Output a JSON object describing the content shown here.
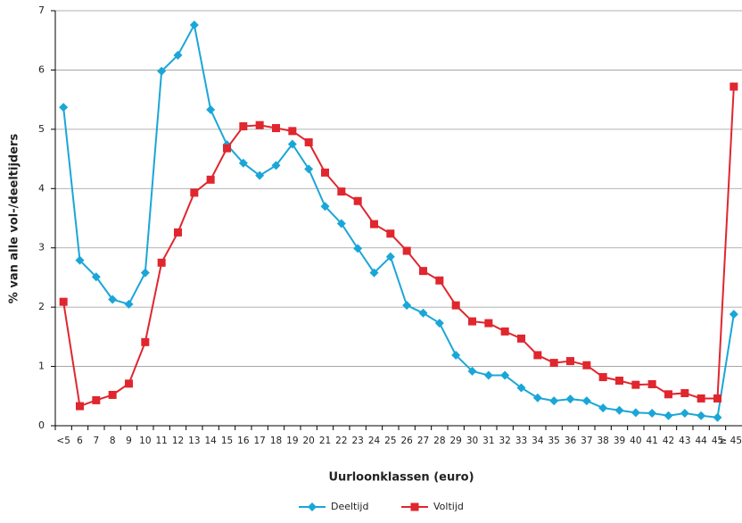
{
  "chart_data": {
    "type": "line",
    "x_label": "Uurloonklassen (euro)",
    "y_label": "% van alle vol-/deeltijders",
    "categories": [
      "<5",
      "6",
      "7",
      "8",
      "9",
      "10",
      "11",
      "12",
      "13",
      "14",
      "15",
      "16",
      "17",
      "18",
      "19",
      "20",
      "21",
      "22",
      "23",
      "24",
      "25",
      "26",
      "27",
      "28",
      "29",
      "30",
      "31",
      "32",
      "33",
      "34",
      "35",
      "36",
      "37",
      "38",
      "39",
      "40",
      "41",
      "42",
      "43",
      "44",
      "45",
      "≥ 45"
    ],
    "series": [
      {
        "name": "Deeltijd",
        "color": "#1aa6d8",
        "marker": "diamond",
        "values": [
          5.37,
          2.79,
          2.51,
          2.13,
          2.05,
          2.58,
          5.98,
          6.25,
          6.76,
          5.33,
          4.74,
          4.43,
          4.22,
          4.39,
          4.75,
          4.33,
          3.7,
          3.41,
          2.99,
          2.58,
          2.85,
          2.03,
          1.9,
          1.73,
          1.19,
          0.92,
          0.85,
          0.85,
          0.64,
          0.47,
          0.42,
          0.45,
          0.42,
          0.3,
          0.26,
          0.22,
          0.21,
          0.17,
          0.21,
          0.17,
          0.14,
          1.88
        ]
      },
      {
        "name": "Voltijd",
        "color": "#e0262e",
        "marker": "square",
        "values": [
          2.09,
          0.33,
          0.43,
          0.52,
          0.71,
          1.41,
          2.75,
          3.26,
          3.93,
          4.15,
          4.68,
          5.05,
          5.07,
          5.02,
          4.97,
          4.78,
          4.27,
          3.95,
          3.79,
          3.4,
          3.24,
          2.95,
          2.61,
          2.45,
          2.03,
          1.76,
          1.73,
          1.59,
          1.47,
          1.19,
          1.06,
          1.09,
          1.02,
          0.82,
          0.76,
          0.69,
          0.7,
          0.53,
          0.55,
          0.46,
          0.46,
          5.72
        ]
      }
    ],
    "ylim": [
      0,
      7
    ],
    "yticks": [
      0,
      1,
      2,
      3,
      4,
      5,
      6,
      7
    ],
    "grid": true,
    "legend": "bottom"
  }
}
